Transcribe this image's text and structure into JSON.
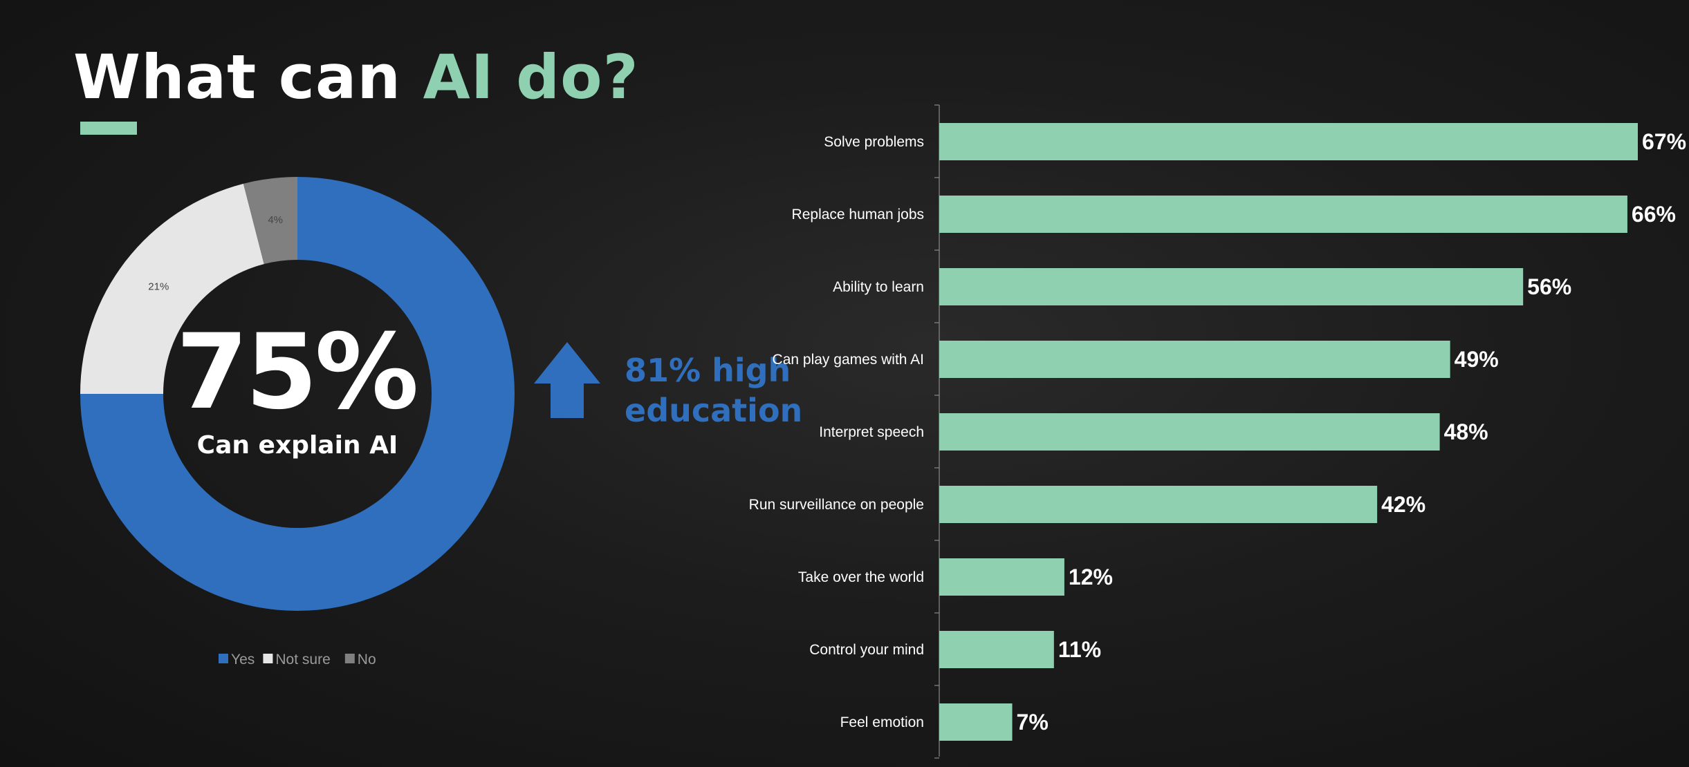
{
  "header": {
    "title_prefix": "What can ",
    "title_accent": "AI do?",
    "accent_color": "#8ed0b0"
  },
  "donut": {
    "center_value": "75%",
    "center_caption": "Can explain AI"
  },
  "callout": {
    "line1": "81% high",
    "line2": "education",
    "icon": "arrow-up-icon",
    "color": "#2f6fbd"
  },
  "chart_data": [
    {
      "type": "pie",
      "variant": "donut",
      "categories": [
        "Yes",
        "Not sure",
        "No"
      ],
      "values": [
        75,
        21,
        4
      ],
      "slice_labels": [
        "",
        "21%",
        "4%"
      ],
      "colors": [
        "#2f6fbd",
        "#e6e6e6",
        "#808080"
      ],
      "legend": "bottom"
    },
    {
      "type": "bar",
      "orientation": "horizontal",
      "categories": [
        "Solve problems",
        "Replace human jobs",
        "Ability to learn",
        "Can play games with AI",
        "Interpret speech",
        "Run surveillance on people",
        "Take over the world",
        "Control your mind",
        "Feel emotion"
      ],
      "values": [
        67,
        66,
        56,
        49,
        48,
        42,
        12,
        11,
        7
      ],
      "value_labels": [
        "67%",
        "66%",
        "56%",
        "49%",
        "48%",
        "42%",
        "12%",
        "11%",
        "7%"
      ],
      "color": "#8ed0b0",
      "xlim": [
        0,
        67
      ],
      "grid": false
    }
  ]
}
